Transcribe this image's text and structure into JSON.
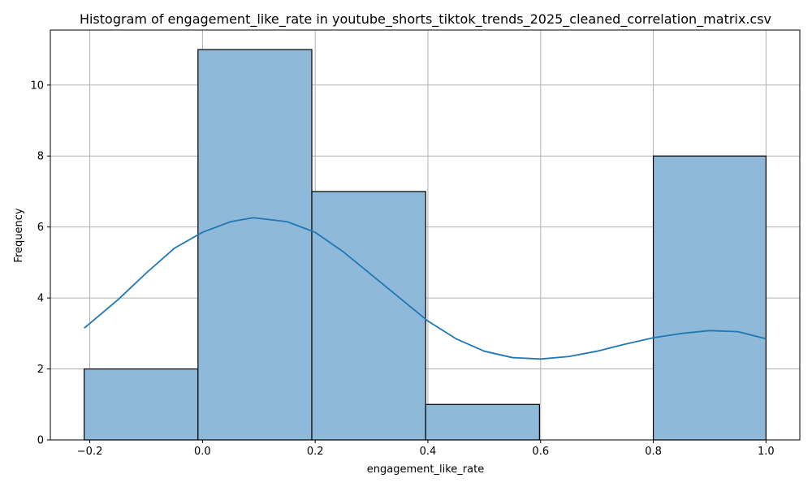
{
  "chart_data": {
    "type": "bar",
    "title": "Histogram of engagement_like_rate in youtube_shorts_tiktok_trends_2025_cleaned_correlation_matrix.csv",
    "xlabel": "engagement_like_rate",
    "ylabel": "Frequency",
    "xlim": [
      -0.27,
      1.06
    ],
    "ylim": [
      0,
      11.55
    ],
    "xticks": [
      -0.2,
      0.0,
      0.2,
      0.4,
      0.6,
      0.8,
      1.0
    ],
    "xtick_labels": [
      "−0.2",
      "0.0",
      "0.2",
      "0.4",
      "0.6",
      "0.8",
      "1.0"
    ],
    "yticks": [
      0,
      2,
      4,
      6,
      8,
      10
    ],
    "ytick_labels": [
      "0",
      "2",
      "4",
      "6",
      "8",
      "10"
    ],
    "grid": true,
    "bins": [
      {
        "start": -0.21,
        "end": -0.008,
        "count": 2
      },
      {
        "start": -0.008,
        "end": 0.194,
        "count": 11
      },
      {
        "start": 0.194,
        "end": 0.396,
        "count": 7
      },
      {
        "start": 0.396,
        "end": 0.598,
        "count": 1
      },
      {
        "start": 0.598,
        "end": 0.8,
        "count": 0
      },
      {
        "start": 0.8,
        "end": 1.0,
        "count": 8
      }
    ],
    "kde": {
      "x": [
        -0.21,
        -0.15,
        -0.1,
        -0.05,
        0.0,
        0.05,
        0.09,
        0.15,
        0.2,
        0.25,
        0.3,
        0.35,
        0.4,
        0.45,
        0.5,
        0.55,
        0.6,
        0.65,
        0.7,
        0.75,
        0.8,
        0.85,
        0.9,
        0.95,
        1.0
      ],
      "y": [
        3.15,
        3.95,
        4.7,
        5.4,
        5.85,
        6.15,
        6.26,
        6.15,
        5.85,
        5.3,
        4.65,
        4.0,
        3.35,
        2.85,
        2.5,
        2.32,
        2.28,
        2.35,
        2.5,
        2.7,
        2.88,
        3.0,
        3.08,
        3.05,
        2.85
      ]
    },
    "colors": {
      "bar_fill": "#8fb9d9",
      "bar_edge": "#000000",
      "kde_line": "#1f77b4",
      "grid": "#b0b0b0"
    }
  }
}
